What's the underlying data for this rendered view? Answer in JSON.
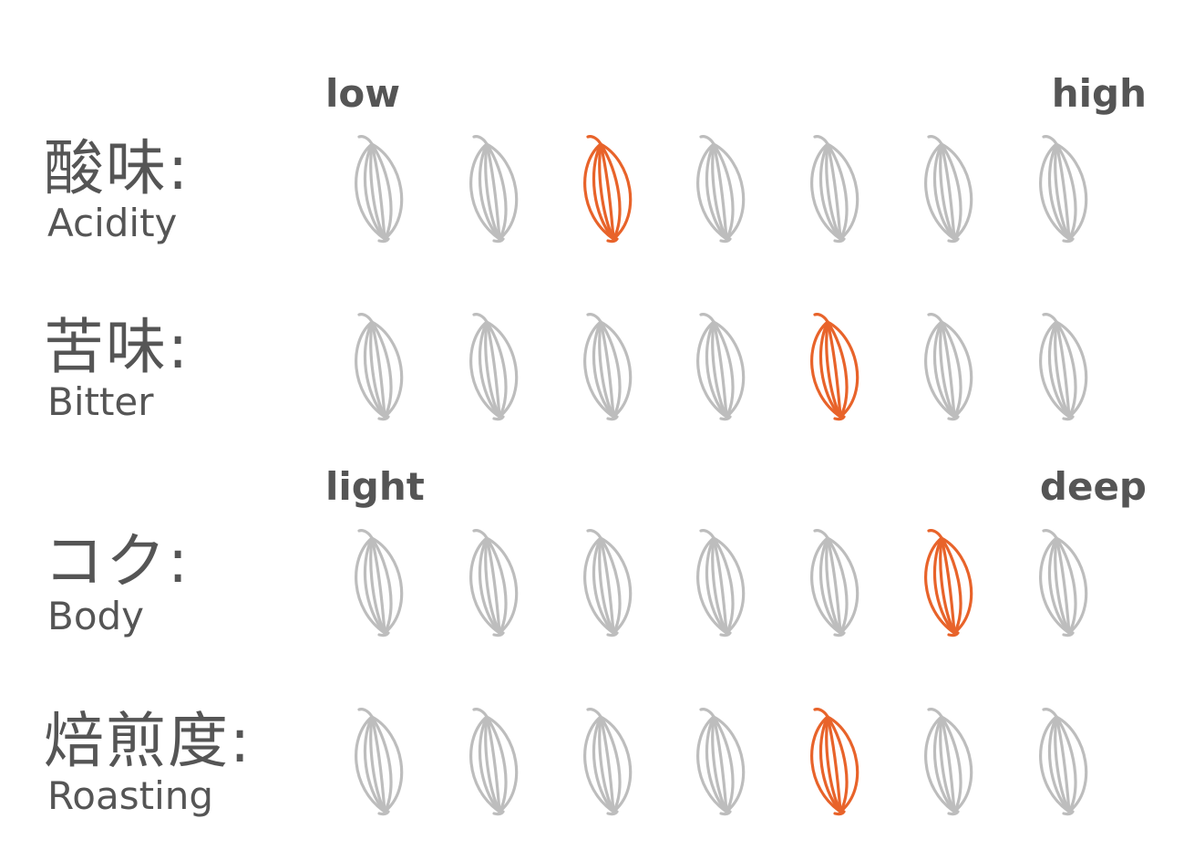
{
  "scales": {
    "taste": {
      "low": "low",
      "high": "high"
    },
    "body": {
      "low": "light",
      "high": "deep"
    }
  },
  "max_level": 7,
  "colors": {
    "active": "#E8632A",
    "inactive": "#BDBDBD",
    "text": "#555555"
  },
  "icon": "coffee-bean-icon",
  "rows": [
    {
      "jp": "酸味:",
      "en": "Acidity",
      "level": 3
    },
    {
      "jp": "苦味:",
      "en": "Bitter",
      "level": 5
    },
    {
      "jp": "コク:",
      "en": "Body",
      "level": 6
    },
    {
      "jp": "焙煎度:",
      "en": "Roasting",
      "level": 5
    }
  ]
}
